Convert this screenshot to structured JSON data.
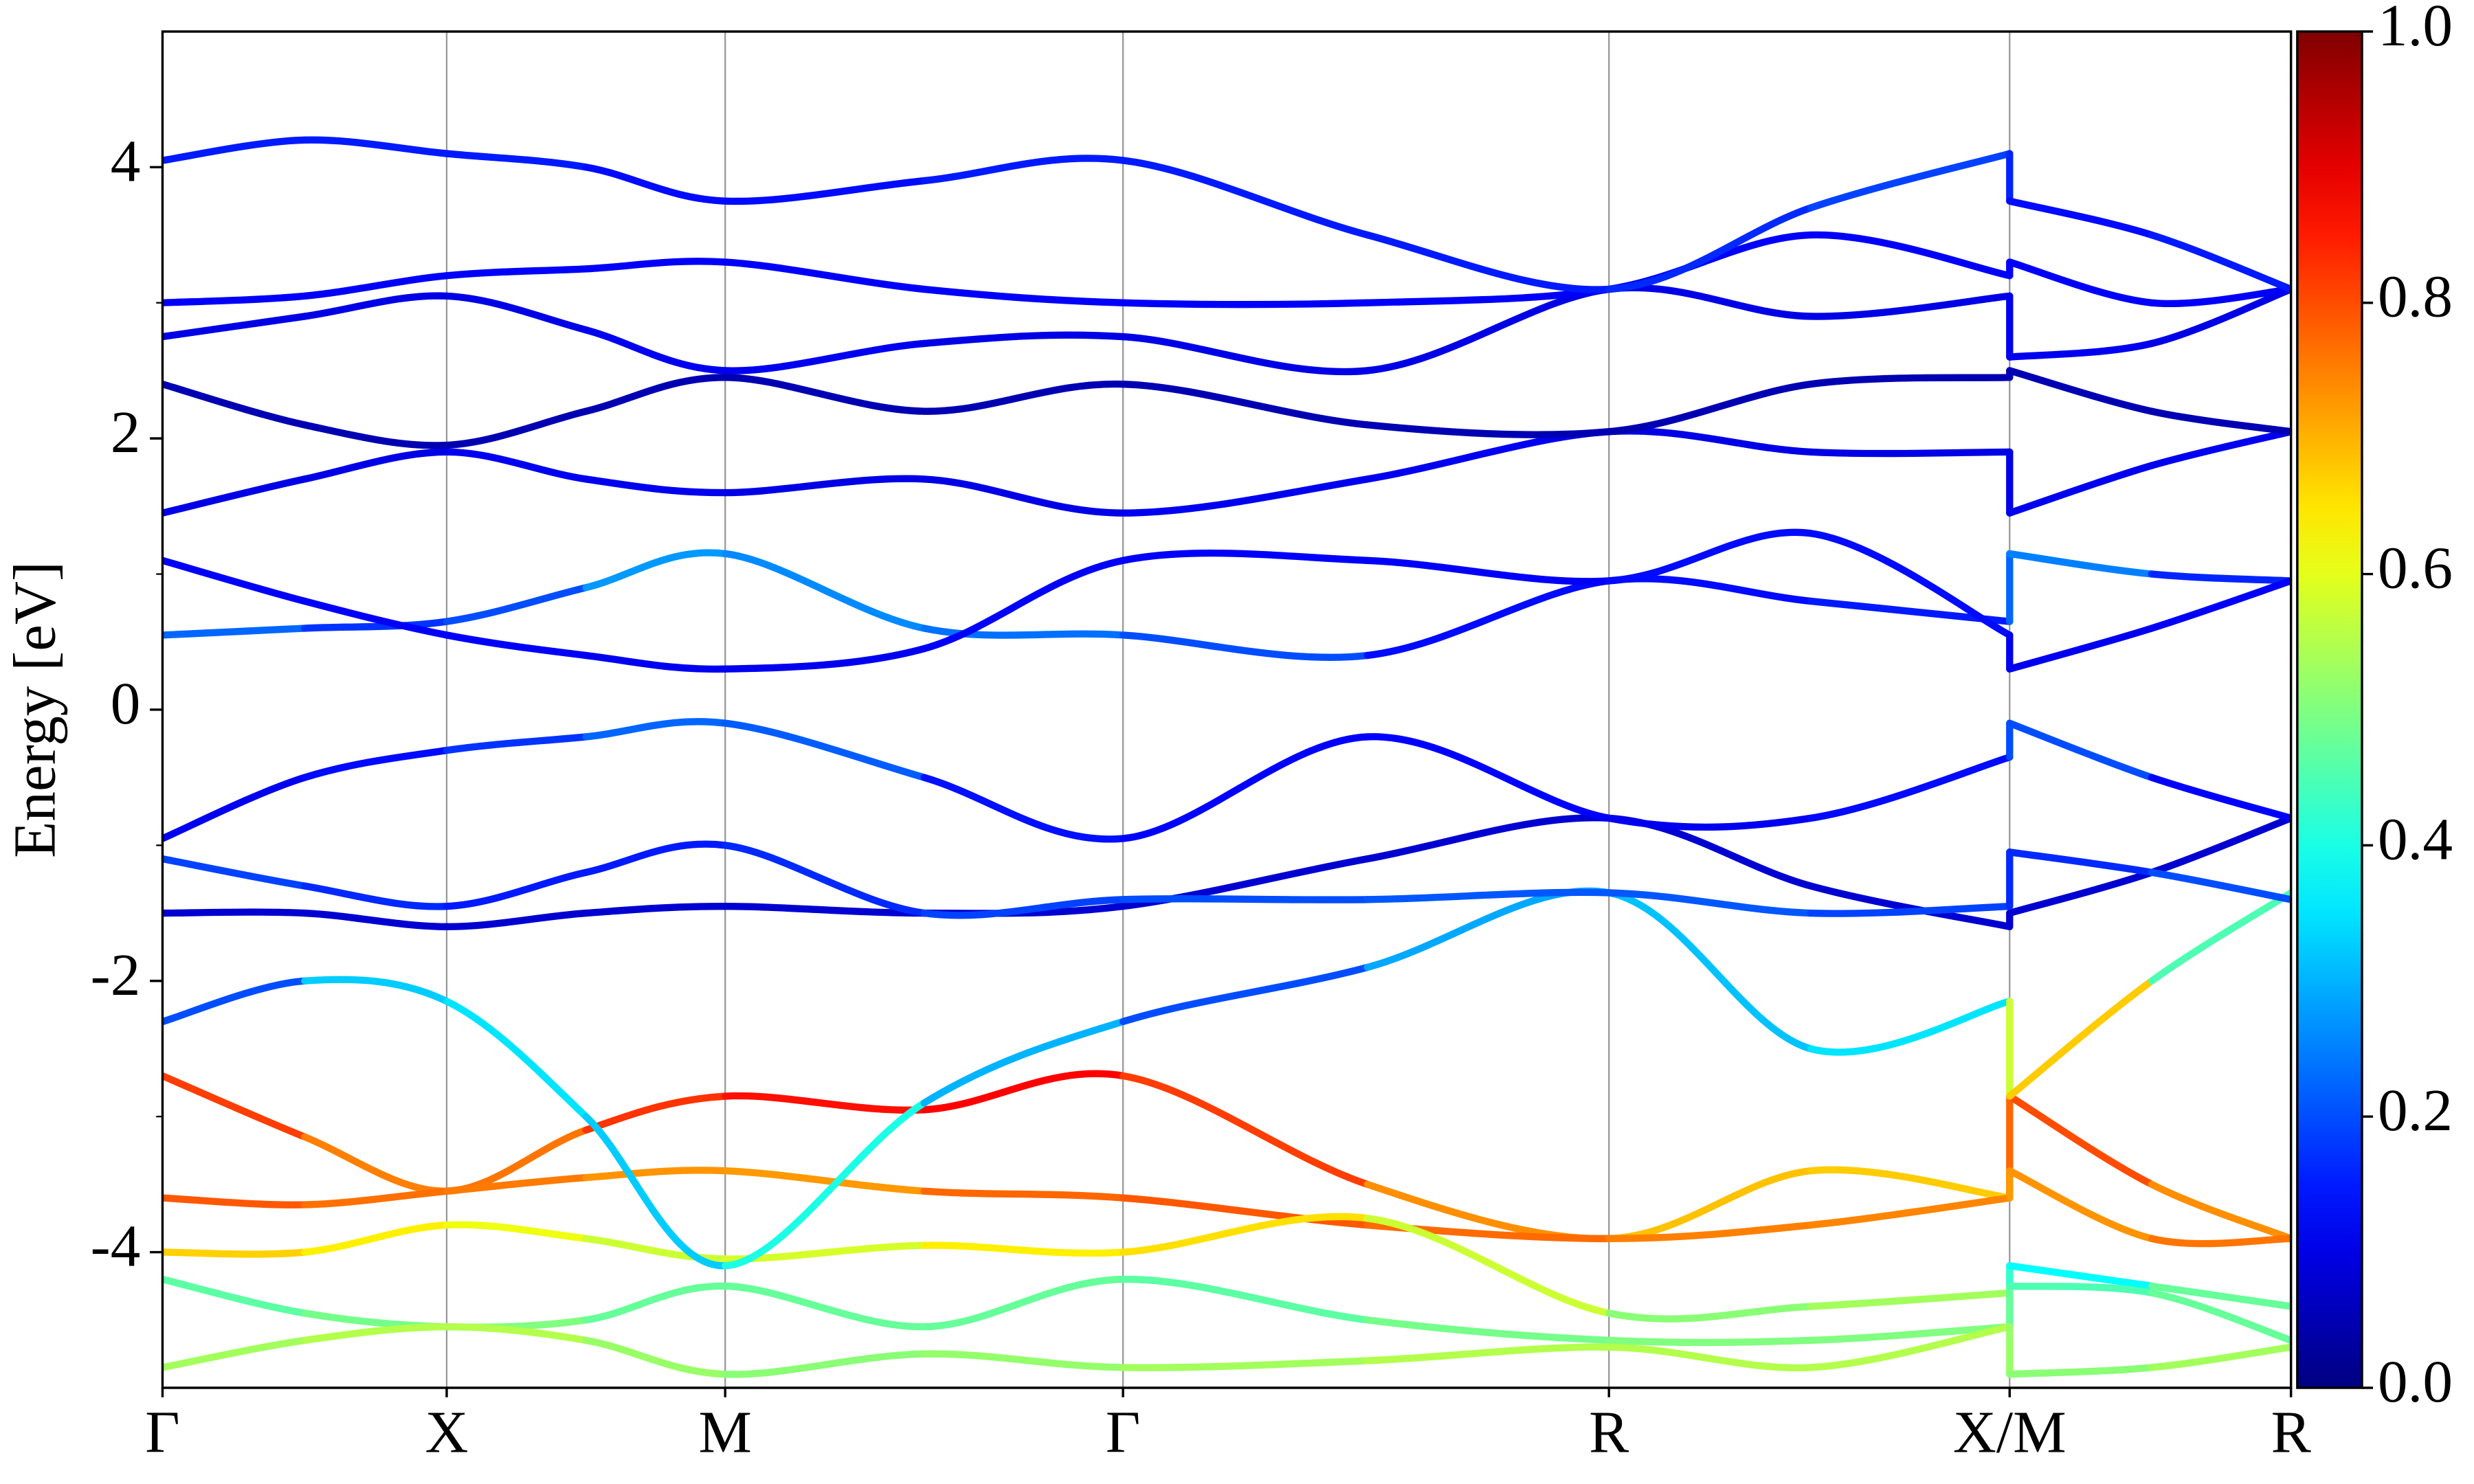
{
  "chart_data": {
    "type": "band-structure",
    "ylabel": "Energy [eV]",
    "x": [
      0,
      0.5,
      1.0,
      1.49,
      1.98,
      2.68,
      3.38,
      4.24,
      5.09,
      5.8,
      6.5,
      6.5,
      7.0,
      7.49
    ],
    "xlim": [
      0,
      7.49
    ],
    "xticks": [
      {
        "value": 0,
        "label": "Γ"
      },
      {
        "value": 1.0,
        "label": "X"
      },
      {
        "value": 1.98,
        "label": "M"
      },
      {
        "value": 3.38,
        "label": "Γ"
      },
      {
        "value": 5.09,
        "label": "R"
      },
      {
        "value": 6.5,
        "label": "X/M"
      },
      {
        "value": 7.49,
        "label": "R"
      }
    ],
    "ylim": [
      -5,
      5
    ],
    "yticks": [
      -4,
      -2,
      0,
      2,
      4
    ],
    "yminorticks": [
      -3,
      -1,
      1,
      3
    ],
    "grid": true,
    "colormap": "jet",
    "clim": [
      0,
      1
    ],
    "cticks": [
      {
        "value": 0,
        "label": "0.0"
      },
      {
        "value": 0.2,
        "label": "0.2"
      },
      {
        "value": 0.4,
        "label": "0.4"
      },
      {
        "value": 0.6,
        "label": "0.6"
      },
      {
        "value": 0.8,
        "label": "0.8"
      },
      {
        "value": 1,
        "label": "1.0"
      }
    ],
    "series": [
      {
        "values": [
          -2.7,
          -3.15,
          -3.55,
          -3.1,
          -2.85,
          -2.95,
          -2.7,
          -3.5,
          -3.9,
          -3.4,
          -3.6,
          -2.85,
          -3.5,
          -3.9
        ],
        "weights": [
          0.85,
          0.78,
          0.72,
          0.8,
          0.85,
          0.87,
          0.88,
          0.75,
          0.72,
          0.65,
          0.7,
          0.85,
          0.75,
          0.72
        ]
      },
      {
        "values": [
          -3.6,
          -3.65,
          -3.55,
          -3.45,
          -3.4,
          -3.55,
          -3.6,
          -3.8,
          -3.9,
          -3.8,
          -3.6,
          -3.4,
          -3.9,
          -3.9
        ],
        "weights": [
          0.8,
          0.78,
          0.75,
          0.76,
          0.7,
          0.75,
          0.8,
          0.78,
          0.76,
          0.74,
          0.75,
          0.7,
          0.76,
          0.76
        ]
      },
      {
        "values": [
          -4.0,
          -4.0,
          -3.8,
          -3.9,
          -4.05,
          -3.95,
          -4.0,
          -3.75,
          -4.45,
          -4.4,
          -4.3,
          -4.1,
          -4.25,
          -4.4
        ],
        "weights": [
          0.68,
          0.66,
          0.62,
          0.6,
          0.55,
          0.62,
          0.66,
          0.65,
          0.5,
          0.52,
          0.55,
          0.3,
          0.45,
          0.5
        ]
      },
      {
        "values": [
          -4.2,
          -4.45,
          -4.55,
          -4.5,
          -4.25,
          -4.55,
          -4.2,
          -4.5,
          -4.65,
          -4.65,
          -4.55,
          -4.25,
          -4.3,
          -4.65
        ],
        "weights": [
          0.45,
          0.48,
          0.5,
          0.5,
          0.45,
          0.5,
          0.45,
          0.48,
          0.5,
          0.5,
          0.5,
          0.45,
          0.45,
          0.5
        ]
      },
      {
        "values": [
          -4.85,
          -4.65,
          -4.55,
          -4.65,
          -4.9,
          -4.75,
          -4.85,
          -4.8,
          -4.7,
          -4.85,
          -4.55,
          -4.9,
          -4.85,
          -4.7
        ],
        "weights": [
          0.52,
          0.55,
          0.55,
          0.55,
          0.5,
          0.52,
          0.52,
          0.55,
          0.55,
          0.55,
          0.55,
          0.5,
          0.52,
          0.55
        ]
      },
      {
        "values": [
          -2.3,
          -2.0,
          -2.15,
          -3.0,
          -4.1,
          -2.9,
          -2.3,
          -1.9,
          -1.35,
          -2.5,
          -2.15,
          -2.85,
          -2.0,
          -1.35
        ],
        "weights": [
          0.1,
          0.3,
          0.35,
          0.35,
          0.3,
          0.5,
          0.1,
          0.3,
          0.28,
          0.35,
          0.35,
          0.8,
          0.55,
          0.35
        ]
      },
      {
        "values": [
          -1.5,
          -1.5,
          -1.6,
          -1.5,
          -1.45,
          -1.5,
          -1.45,
          -1.1,
          -0.8,
          -1.3,
          -1.6,
          -1.5,
          -1.2,
          -0.8
        ],
        "weights": [
          0.08,
          0.08,
          0.08,
          0.08,
          0.08,
          0.08,
          0.08,
          0.08,
          0.08,
          0.08,
          0.08,
          0.08,
          0.08,
          0.08
        ]
      },
      {
        "values": [
          -1.1,
          -1.3,
          -1.45,
          -1.2,
          -1.0,
          -1.5,
          -1.4,
          -1.4,
          -1.35,
          -1.5,
          -1.45,
          -1.05,
          -1.2,
          -1.4
        ],
        "weights": [
          0.2,
          0.18,
          0.15,
          0.15,
          0.15,
          0.18,
          0.2,
          0.2,
          0.22,
          0.2,
          0.18,
          0.15,
          0.18,
          0.22
        ]
      },
      {
        "values": [
          -0.95,
          -0.5,
          -0.3,
          -0.2,
          -0.1,
          -0.5,
          -0.95,
          -0.2,
          -0.8,
          -0.8,
          -0.35,
          -0.1,
          -0.5,
          -0.8
        ],
        "weights": [
          0.1,
          0.12,
          0.15,
          0.2,
          0.25,
          0.18,
          0.1,
          0.15,
          0.1,
          0.12,
          0.15,
          0.25,
          0.15,
          0.1
        ]
      },
      {
        "values": [
          0.55,
          0.6,
          0.65,
          0.9,
          1.15,
          0.6,
          0.55,
          0.4,
          0.95,
          0.8,
          0.65,
          1.15,
          1.0,
          0.95
        ],
        "weights": [
          0.25,
          0.2,
          0.15,
          0.25,
          0.3,
          0.22,
          0.25,
          0.15,
          0.12,
          0.15,
          0.15,
          0.3,
          0.2,
          0.12
        ]
      },
      {
        "values": [
          1.1,
          0.8,
          0.55,
          0.4,
          0.3,
          0.45,
          1.1,
          1.1,
          0.95,
          1.3,
          0.55,
          0.3,
          0.6,
          0.95
        ],
        "weights": [
          0.12,
          0.12,
          0.12,
          0.12,
          0.1,
          0.12,
          0.12,
          0.12,
          0.12,
          0.15,
          0.12,
          0.1,
          0.12,
          0.12
        ]
      },
      {
        "values": [
          1.45,
          1.7,
          1.9,
          1.7,
          1.6,
          1.7,
          1.45,
          1.7,
          2.05,
          1.9,
          1.9,
          1.45,
          1.8,
          2.05
        ],
        "weights": [
          0.1,
          0.1,
          0.1,
          0.12,
          0.1,
          0.1,
          0.1,
          0.12,
          0.1,
          0.1,
          0.1,
          0.1,
          0.12,
          0.1
        ]
      },
      {
        "values": [
          2.4,
          2.1,
          1.95,
          2.2,
          2.45,
          2.2,
          2.4,
          2.1,
          2.05,
          2.4,
          2.45,
          2.5,
          2.2,
          2.05
        ],
        "weights": [
          0.05,
          0.05,
          0.05,
          0.05,
          0.05,
          0.05,
          0.05,
          0.05,
          0.05,
          0.05,
          0.05,
          0.05,
          0.05,
          0.05
        ]
      },
      {
        "values": [
          2.75,
          2.9,
          3.05,
          2.8,
          2.5,
          2.7,
          2.75,
          2.5,
          3.1,
          2.9,
          3.05,
          2.6,
          2.7,
          3.1
        ],
        "weights": [
          0.1,
          0.1,
          0.1,
          0.1,
          0.12,
          0.1,
          0.1,
          0.1,
          0.1,
          0.1,
          0.1,
          0.12,
          0.1,
          0.1
        ]
      },
      {
        "values": [
          3.0,
          3.05,
          3.2,
          3.25,
          3.3,
          3.1,
          3.0,
          3.0,
          3.1,
          3.5,
          3.2,
          3.3,
          3.0,
          3.1
        ],
        "weights": [
          0.12,
          0.12,
          0.12,
          0.12,
          0.12,
          0.12,
          0.12,
          0.12,
          0.12,
          0.12,
          0.12,
          0.12,
          0.12,
          0.12
        ]
      },
      {
        "values": [
          4.05,
          4.2,
          4.1,
          4.0,
          3.75,
          3.9,
          4.05,
          3.5,
          3.1,
          3.7,
          4.1,
          3.75,
          3.5,
          3.1
        ],
        "weights": [
          0.15,
          0.15,
          0.15,
          0.15,
          0.12,
          0.15,
          0.15,
          0.15,
          0.15,
          0.18,
          0.2,
          0.12,
          0.15,
          0.15
        ]
      }
    ]
  }
}
